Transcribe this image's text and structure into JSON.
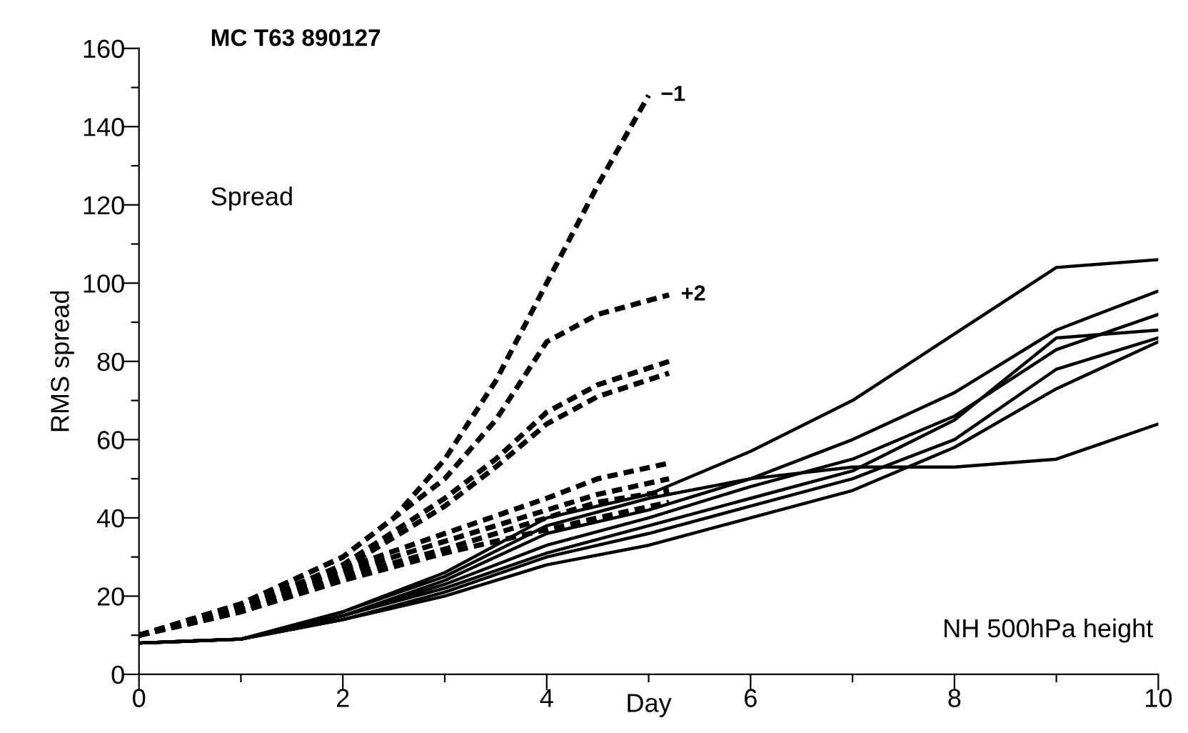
{
  "chart_data": {
    "type": "line",
    "title": "MC T63 890127",
    "xlabel": "Day",
    "ylabel": "RMS spread",
    "xlim": [
      0,
      10
    ],
    "ylim": [
      0,
      160
    ],
    "xticks": [
      0,
      {
        "value": 1,
        "label": null
      },
      2,
      {
        "value": 3,
        "label": null
      },
      4,
      {
        "value": 5,
        "label": null
      },
      6,
      {
        "value": 7,
        "label": null
      },
      8,
      {
        "value": 9,
        "label": null
      },
      10
    ],
    "yticks": [
      0,
      {
        "value": 10,
        "label": null
      },
      20,
      {
        "value": 30,
        "label": null
      },
      40,
      {
        "value": 50,
        "label": null
      },
      60,
      {
        "value": 70,
        "label": null
      },
      80,
      {
        "value": 90,
        "label": null
      },
      100,
      {
        "value": 110,
        "label": null
      },
      120,
      {
        "value": 130,
        "label": null
      },
      140,
      {
        "value": 150,
        "label": null
      },
      160
    ],
    "grid": false,
    "legend": false,
    "marker": "none",
    "annotations": [
      "Spread",
      "NH 500hPa height",
      {
        "text": "−1",
        "x": 5,
        "y": 148
      },
      {
        "text": "+2",
        "x": 5.2,
        "y": 97
      }
    ],
    "series": [
      {
        "color": "#000000",
        "line_style": "dashed",
        "x": [
          0,
          1,
          2,
          2.5,
          3,
          3.5,
          4,
          4.5,
          5
        ],
        "values": [
          10,
          18,
          30,
          40,
          55,
          75,
          100,
          125,
          148
        ]
      },
      {
        "color": "#000000",
        "line_style": "dashed",
        "x": [
          0,
          1,
          2,
          3,
          3.5,
          4,
          4.5,
          5.2
        ],
        "values": [
          10,
          18,
          30,
          50,
          65,
          85,
          92,
          97
        ]
      },
      {
        "color": "#000000",
        "line_style": "dashed",
        "x": [
          0,
          1,
          2,
          3,
          3.5,
          4,
          4.5,
          5.2
        ],
        "values": [
          10,
          17,
          28,
          45,
          55,
          67,
          74,
          80
        ]
      },
      {
        "color": "#000000",
        "line_style": "dashed",
        "x": [
          0,
          1,
          2,
          3,
          3.5,
          4,
          4.5,
          5.2
        ],
        "values": [
          10,
          17,
          27,
          43,
          53,
          64,
          71,
          77
        ]
      },
      {
        "color": "#000000",
        "line_style": "dashed",
        "x": [
          0,
          1,
          2,
          3,
          4,
          4.5,
          5.2
        ],
        "values": [
          10,
          17,
          27,
          36,
          45,
          50,
          54
        ]
      },
      {
        "color": "#000000",
        "line_style": "dashed",
        "x": [
          0,
          1,
          2,
          3,
          4,
          4.5,
          5.2
        ],
        "values": [
          10,
          16,
          26,
          34,
          42,
          46,
          50
        ]
      },
      {
        "color": "#000000",
        "line_style": "dashed",
        "x": [
          0,
          1,
          2,
          3,
          4,
          4.5,
          5.2
        ],
        "values": [
          10,
          16,
          25,
          32,
          40,
          44,
          47
        ]
      },
      {
        "color": "#000000",
        "line_style": "dashed",
        "x": [
          0,
          1,
          2,
          3,
          4,
          4.5,
          5.2
        ],
        "values": [
          10,
          16,
          24,
          31,
          37,
          40,
          44
        ]
      },
      {
        "color": "#000000",
        "line_style": "solid",
        "x": [
          0,
          1,
          2,
          3,
          4,
          5,
          6,
          7,
          8,
          9,
          10
        ],
        "values": [
          8,
          9,
          16,
          26,
          40,
          46,
          57,
          70,
          87,
          104,
          106
        ]
      },
      {
        "color": "#000000",
        "line_style": "solid",
        "x": [
          0,
          1,
          2,
          3,
          4,
          5,
          6,
          7,
          8,
          9,
          10
        ],
        "values": [
          8,
          9,
          15,
          24,
          36,
          42,
          50,
          60,
          72,
          88,
          98
        ]
      },
      {
        "color": "#000000",
        "line_style": "solid",
        "x": [
          0,
          1,
          2,
          3,
          4,
          5,
          6,
          7,
          8,
          9,
          10
        ],
        "values": [
          8,
          9,
          15,
          23,
          33,
          40,
          48,
          55,
          66,
          83,
          92
        ]
      },
      {
        "color": "#000000",
        "line_style": "solid",
        "x": [
          0,
          1,
          2,
          3,
          4,
          5,
          6,
          7,
          8,
          9,
          10
        ],
        "values": [
          8,
          9,
          15,
          22,
          31,
          38,
          45,
          52,
          65,
          86,
          88
        ]
      },
      {
        "color": "#000000",
        "line_style": "solid",
        "x": [
          0,
          1,
          2,
          3,
          4,
          5,
          6,
          7,
          8,
          9,
          10
        ],
        "values": [
          8,
          9,
          14,
          21,
          30,
          36,
          43,
          50,
          60,
          78,
          86
        ]
      },
      {
        "color": "#000000",
        "line_style": "solid",
        "x": [
          0,
          1,
          2,
          3,
          4,
          5,
          6,
          7,
          8,
          9,
          10
        ],
        "values": [
          8,
          9,
          14,
          20,
          28,
          33,
          40,
          47,
          58,
          73,
          85
        ]
      },
      {
        "color": "#000000",
        "line_style": "solid",
        "x": [
          0,
          1,
          2,
          3,
          4,
          5,
          6,
          7,
          8,
          9,
          10
        ],
        "values": [
          8,
          9,
          16,
          25,
          38,
          45,
          50,
          53,
          53,
          55,
          64
        ]
      }
    ]
  }
}
